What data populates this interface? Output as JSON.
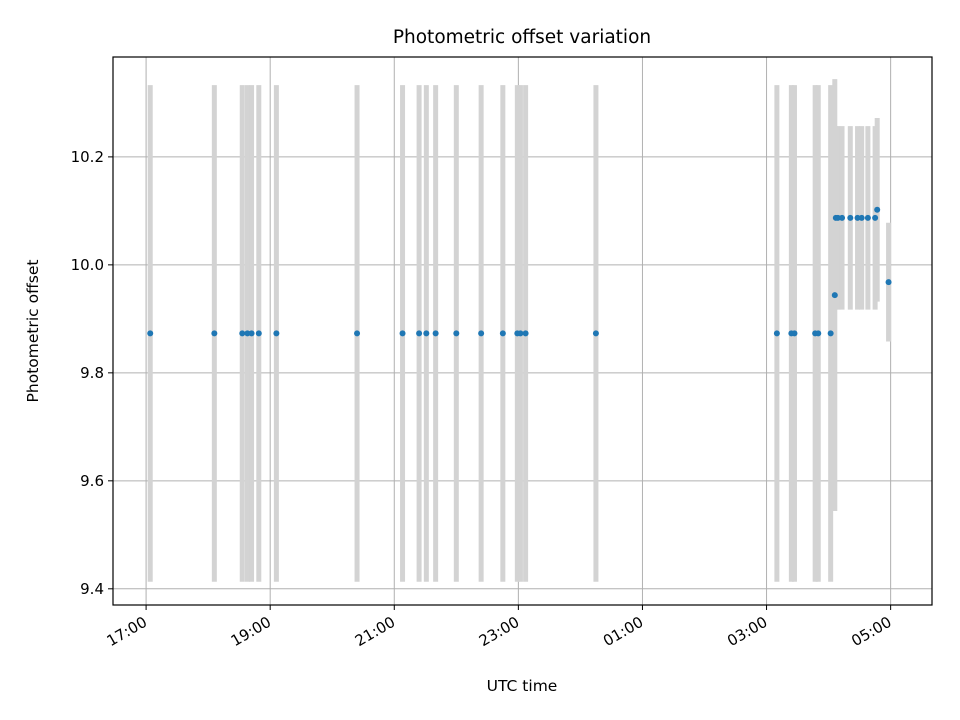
{
  "chart_data": {
    "type": "scatter",
    "title": "Photometric offset variation",
    "xlabel": "UTC time",
    "ylabel": "Photometric offset",
    "xlim": [
      "16:28",
      "05:40"
    ],
    "ylim": [
      9.37,
      10.385
    ],
    "grid": true,
    "x_ticks": [
      "17:00",
      "19:00",
      "21:00",
      "23:00",
      "01:00",
      "03:00",
      "05:00"
    ],
    "y_ticks": [
      "9.4",
      "9.6",
      "9.8",
      "10.0",
      "10.2"
    ],
    "colors": {
      "points": "#1f77b4",
      "error_bars": "#d3d3d3",
      "grid": "#b0b0b0"
    },
    "series": [
      {
        "x": [
          "17:04",
          "18:06",
          "18:33",
          "18:38",
          "18:42",
          "18:49",
          "19:06",
          "20:24",
          "21:08",
          "21:24",
          "21:31",
          "21:40",
          "22:00",
          "22:24",
          "22:45",
          "22:59",
          "23:02",
          "23:07",
          "00:15",
          "03:10",
          "03:24",
          "03:27",
          "03:47",
          "03:50",
          "04:02",
          "04:06",
          "04:07",
          "04:09",
          "04:13",
          "04:21",
          "04:28",
          "04:32",
          "04:38",
          "04:45",
          "04:47",
          "04:58"
        ],
        "y": [
          9.873,
          9.873,
          9.873,
          9.873,
          9.873,
          9.873,
          9.873,
          9.873,
          9.873,
          9.873,
          9.873,
          9.873,
          9.873,
          9.873,
          9.873,
          9.873,
          9.873,
          9.873,
          9.873,
          9.873,
          9.873,
          9.873,
          9.873,
          9.873,
          9.873,
          9.944,
          10.087,
          10.087,
          10.087,
          10.087,
          10.087,
          10.087,
          10.087,
          10.087,
          10.102,
          9.968
        ],
        "y_err": [
          0.46,
          0.46,
          0.46,
          0.46,
          0.46,
          0.46,
          0.46,
          0.46,
          0.46,
          0.46,
          0.46,
          0.46,
          0.46,
          0.46,
          0.46,
          0.46,
          0.46,
          0.46,
          0.46,
          0.46,
          0.46,
          0.46,
          0.46,
          0.46,
          0.46,
          0.4,
          0.17,
          0.17,
          0.17,
          0.17,
          0.17,
          0.17,
          0.17,
          0.17,
          0.17,
          0.11
        ]
      }
    ]
  }
}
